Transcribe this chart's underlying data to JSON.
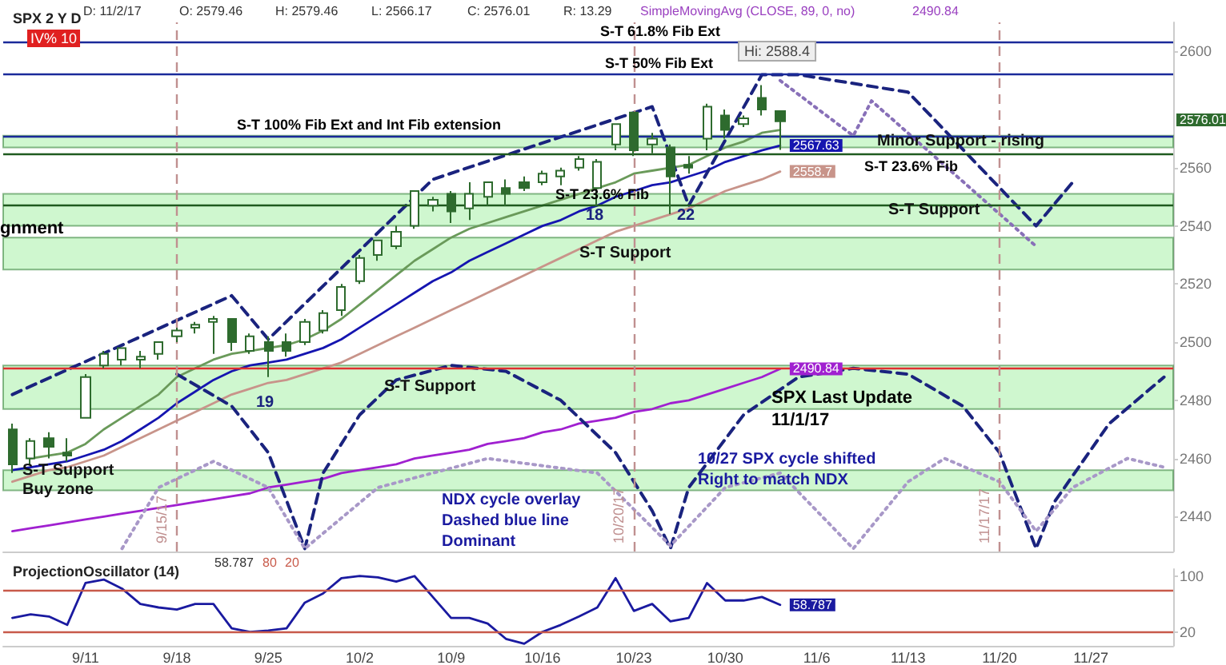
{
  "chart_data": [
    {
      "type": "candlestick",
      "title": "SPX 2 Y D",
      "color": "#2e6b2e",
      "marker": "none",
      "tick_labels": "y",
      "categories": [
        null,
        null,
        null,
        null,
        "9/11",
        null,
        null,
        null,
        null,
        "9/18",
        null,
        null,
        null,
        null,
        "9/25",
        null,
        null,
        null,
        null,
        "10/2",
        null,
        null,
        null,
        null,
        "10/9",
        null,
        null,
        null,
        null,
        "10/16",
        null,
        null,
        null,
        null,
        "10/23",
        null,
        null,
        null,
        null,
        "10/30",
        null,
        null,
        null,
        null,
        "11/6",
        null,
        null,
        null,
        null,
        "11/13",
        null,
        null,
        null,
        null,
        "11/20",
        null,
        null,
        null,
        null,
        "11/27",
        null,
        null,
        null,
        null
      ],
      "ohlc": [
        [
          2470,
          2472,
          2455,
          2458
        ],
        [
          2460,
          2467,
          2458,
          2466
        ],
        [
          2467,
          2469,
          2460,
          2464
        ],
        [
          2462,
          2467,
          2459,
          2461
        ],
        [
          2474,
          2489,
          2474,
          2488
        ],
        [
          2492,
          2497,
          2491,
          2496
        ],
        [
          2494,
          2498,
          2492,
          2498
        ],
        [
          2494,
          2497,
          2491,
          2495
        ],
        [
          2496,
          2500,
          2494,
          2500
        ],
        [
          2502,
          2505,
          2500,
          2504
        ],
        [
          2505,
          2507,
          2503,
          2506
        ],
        [
          2507,
          2509,
          2496,
          2508
        ],
        [
          2508,
          2508,
          2497,
          2500
        ],
        [
          2497,
          2503,
          2496,
          2502
        ],
        [
          2500,
          2502,
          2488,
          2497
        ],
        [
          2500,
          2503,
          2495,
          2497
        ],
        [
          2500,
          2508,
          2499,
          2507
        ],
        [
          2504,
          2511,
          2503,
          2510
        ],
        [
          2511,
          2520,
          2509,
          2519
        ],
        [
          2521,
          2530,
          2520,
          2529
        ],
        [
          2530,
          2535,
          2528,
          2535
        ],
        [
          2533,
          2540,
          2532,
          2538
        ],
        [
          2540,
          2552,
          2539,
          2552
        ],
        [
          2547,
          2550,
          2545,
          2549
        ],
        [
          2551,
          2552,
          2541,
          2545
        ],
        [
          2546,
          2555,
          2542,
          2551
        ],
        [
          2550,
          2555,
          2547,
          2555
        ],
        [
          2553,
          2556,
          2547,
          2551
        ],
        [
          2555,
          2557,
          2552,
          2553
        ],
        [
          2555,
          2559,
          2554,
          2558
        ],
        [
          2557,
          2560,
          2554,
          2559
        ],
        [
          2560,
          2564,
          2559,
          2563
        ],
        [
          2553,
          2563,
          2547,
          2562
        ],
        [
          2568,
          2575,
          2566,
          2575
        ],
        [
          2579,
          2579,
          2564,
          2566
        ],
        [
          2568,
          2572,
          2565,
          2570
        ],
        [
          2567,
          2568,
          2544,
          2557
        ],
        [
          2561,
          2564,
          2558,
          2560
        ],
        [
          2570,
          2582,
          2566,
          2581
        ],
        [
          2578,
          2580,
          2570,
          2573
        ],
        [
          2575,
          2578,
          2574,
          2577
        ],
        [
          2584,
          2588.4,
          2578,
          2580
        ],
        [
          2579.46,
          2579.46,
          2566.17,
          2576.01
        ],
        null,
        null,
        null,
        null,
        null,
        null,
        null,
        null,
        null,
        null,
        null,
        null,
        null,
        null,
        null,
        null,
        null,
        null,
        null,
        null,
        null
      ],
      "series": [
        {
          "type": "line",
          "color": "#6a9a5a",
          "values": [
            null,
            2460,
            2461,
            2462,
            2465,
            2470,
            2474,
            2478,
            2482,
            2488,
            2491,
            2494,
            2496,
            2497,
            2498,
            2499,
            2501,
            2504,
            2508,
            2513,
            2518,
            2523,
            2528,
            2532,
            2536,
            2539,
            2541,
            2543,
            2545,
            2547,
            2549,
            2551,
            2553,
            2555,
            2558,
            2559,
            2560,
            2561,
            2564,
            2567,
            2569,
            2572,
            2573,
            null,
            null,
            null,
            null,
            null,
            null,
            null,
            null,
            null,
            null,
            null,
            null,
            null,
            null,
            null,
            null,
            null,
            null,
            null,
            null,
            null
          ]
        },
        {
          "type": "line",
          "color": "#1515b0",
          "values": [
            2456,
            2457,
            2458,
            2459,
            2461,
            2463,
            2466,
            2470,
            2474,
            2479,
            2483,
            2487,
            2490,
            2492,
            2493,
            2494,
            2496,
            2498,
            2501,
            2505,
            2509,
            2513,
            2517,
            2521,
            2524,
            2528,
            2531,
            2534,
            2537,
            2540,
            2542,
            2545,
            2547,
            2550,
            2552,
            2554,
            2555,
            2557,
            2559,
            2562,
            2564,
            2566,
            2567.63,
            null,
            null,
            null,
            null,
            null,
            null,
            null,
            null,
            null,
            null,
            null,
            null,
            null,
            null,
            null,
            null,
            null,
            null,
            null,
            null,
            null
          ],
          "value_labels": [
            null,
            null,
            null,
            null,
            null,
            null,
            null,
            null,
            null,
            null,
            null,
            null,
            null,
            null,
            null,
            null,
            null,
            null,
            null,
            null,
            null,
            null,
            null,
            null,
            null,
            null,
            null,
            null,
            null,
            null,
            null,
            null,
            null,
            null,
            null,
            null,
            null,
            null,
            null,
            null,
            null,
            null,
            "2567.63",
            null,
            null,
            null,
            null,
            null,
            null,
            null,
            null,
            null,
            null,
            null,
            null,
            null,
            null,
            null,
            null,
            null,
            null,
            null,
            null,
            null
          ]
        },
        {
          "type": "line",
          "color": "#c8948a",
          "values": [
            2452,
            2454,
            2456,
            2457,
            2459,
            2461,
            2464,
            2467,
            2470,
            2473,
            2476,
            2479,
            2482,
            2484,
            2486,
            2487,
            2489,
            2491,
            2493,
            2496,
            2499,
            2502,
            2505,
            2508,
            2511,
            2514,
            2517,
            2520,
            2523,
            2526,
            2529,
            2532,
            2535,
            2538,
            2540,
            2542,
            2544,
            2546,
            2549,
            2552,
            2554,
            2556,
            2558.7,
            null,
            null,
            null,
            null,
            null,
            null,
            null,
            null,
            null,
            null,
            null,
            null,
            null,
            null,
            null,
            null,
            null,
            null,
            null,
            null,
            null
          ],
          "value_labels": [
            null,
            null,
            null,
            null,
            null,
            null,
            null,
            null,
            null,
            null,
            null,
            null,
            null,
            null,
            null,
            null,
            null,
            null,
            null,
            null,
            null,
            null,
            null,
            null,
            null,
            null,
            null,
            null,
            null,
            null,
            null,
            null,
            null,
            null,
            null,
            null,
            null,
            null,
            null,
            null,
            null,
            null,
            "2558.7",
            null,
            null,
            null,
            null,
            null,
            null,
            null,
            null,
            null,
            null,
            null,
            null,
            null,
            null,
            null,
            null,
            null,
            null,
            null,
            null,
            null
          ]
        },
        {
          "type": "line",
          "color": "#a020d0",
          "values": [
            2435,
            2436,
            2437,
            2438,
            2439,
            2440,
            2441,
            2442,
            2443,
            2444,
            2445,
            2446,
            2447,
            2448,
            2450,
            2451,
            2452,
            2453,
            2455,
            2456,
            2457,
            2458,
            2460,
            2461,
            2462,
            2463,
            2465,
            2466,
            2467,
            2469,
            2470,
            2472,
            2473,
            2474,
            2476,
            2477,
            2479,
            2480,
            2482,
            2484,
            2486,
            2488,
            2490.84,
            null,
            null,
            null,
            null,
            null,
            null,
            null,
            null,
            null,
            null,
            null,
            null,
            null,
            null,
            null,
            null,
            null,
            null,
            null,
            null,
            null
          ],
          "value_labels": [
            null,
            null,
            null,
            null,
            null,
            null,
            null,
            null,
            null,
            null,
            null,
            null,
            null,
            null,
            null,
            null,
            null,
            null,
            null,
            null,
            null,
            null,
            null,
            null,
            null,
            null,
            null,
            null,
            null,
            null,
            null,
            null,
            null,
            null,
            null,
            null,
            null,
            null,
            null,
            null,
            null,
            null,
            "2490.84",
            null,
            null,
            null,
            null,
            null,
            null,
            null,
            null,
            null,
            null,
            null,
            null,
            null,
            null,
            null,
            null,
            null,
            null,
            null,
            null,
            null
          ]
        },
        {
          "type": "line",
          "color": "#1a237e",
          "line_style": "dashed",
          "values": [
            2482,
            null,
            null,
            null,
            null,
            null,
            null,
            null,
            null,
            null,
            null,
            null,
            2516,
            null,
            2501,
            null,
            null,
            null,
            null,
            null,
            null,
            null,
            null,
            2556,
            null,
            null,
            null,
            null,
            null,
            null,
            null,
            null,
            null,
            null,
            null,
            2581,
            null,
            2547,
            null,
            null,
            null,
            2592,
            null,
            2592,
            null,
            null,
            null,
            null,
            null,
            2586,
            null,
            null,
            null,
            null,
            null,
            null,
            2540,
            null,
            2555,
            null,
            null,
            null,
            null,
            null
          ]
        },
        {
          "type": "line",
          "color": "#8870b8",
          "line_style": "dotted",
          "values": [
            null,
            null,
            null,
            null,
            null,
            null,
            null,
            null,
            null,
            null,
            null,
            null,
            null,
            null,
            null,
            null,
            null,
            null,
            null,
            null,
            null,
            null,
            null,
            null,
            null,
            null,
            null,
            null,
            null,
            null,
            null,
            null,
            null,
            null,
            null,
            null,
            null,
            null,
            null,
            null,
            null,
            null,
            2590,
            null,
            null,
            null,
            2571,
            2583,
            null,
            null,
            null,
            null,
            null,
            null,
            null,
            null,
            2533,
            null,
            null,
            null,
            null,
            null,
            null,
            null
          ]
        },
        {
          "type": "line",
          "color": "#1a237e",
          "line_style": "dashed",
          "values": [
            null,
            null,
            null,
            null,
            null,
            null,
            null,
            null,
            null,
            2489,
            null,
            null,
            2478,
            null,
            2462,
            null,
            2429,
            2455,
            null,
            2475,
            null,
            2487,
            null,
            null,
            2492,
            null,
            null,
            2490,
            null,
            null,
            2480,
            null,
            null,
            2462,
            null,
            2442,
            2429,
            2450,
            null,
            null,
            2475,
            null,
            null,
            2488,
            null,
            null,
            2491,
            null,
            null,
            2489,
            null,
            null,
            2478,
            null,
            2462,
            null,
            2429,
            2445,
            null,
            null,
            2472,
            null,
            null,
            2488
          ]
        },
        {
          "type": "line",
          "color": "#a898c8",
          "line_style": "dotted",
          "values": [
            null,
            null,
            null,
            null,
            null,
            null,
            2429,
            null,
            2450,
            null,
            null,
            2459,
            null,
            null,
            2450,
            null,
            2429,
            null,
            null,
            null,
            2450,
            null,
            null,
            null,
            null,
            null,
            2460,
            null,
            null,
            null,
            null,
            null,
            2455,
            null,
            null,
            null,
            2430,
            null,
            null,
            2450,
            null,
            null,
            2455,
            null,
            null,
            null,
            2429,
            null,
            null,
            2452,
            null,
            2460,
            null,
            null,
            2452,
            null,
            2435,
            null,
            2450,
            null,
            null,
            2460,
            null,
            2457
          ]
        }
      ],
      "ylim": [
        2428,
        2610
      ],
      "yticks": [
        2440,
        2460,
        2480,
        2500,
        2520,
        2540,
        2560,
        2600
      ],
      "ref_lines": [
        {
          "axis": "y",
          "value": 2603,
          "label": "S-T 61.8% Fib Ext",
          "color": "#1a2a9a"
        },
        {
          "axis": "y",
          "value": 2592,
          "label": "S-T 50% Fib Ext",
          "color": "#1a2a9a"
        },
        {
          "axis": "y",
          "value": 2571,
          "label": "S-T 100% Fib Ext and Int Fib extension",
          "color": "#1a2a9a"
        },
        {
          "axis": "y",
          "value": 2565,
          "label": "S-T 23.6% Fib",
          "color": "#1f5a1f"
        },
        {
          "axis": "y",
          "value": 2547,
          "label": "S-T 23.6% Fib",
          "color": "#1f5a1f"
        },
        {
          "axis": "y",
          "value": 2491,
          "color": "#e03030"
        },
        {
          "axis": "x",
          "value": "9/18",
          "label": "9/15/17",
          "color": "#c09090",
          "line_style": "dashed"
        },
        {
          "axis": "x",
          "value": "10/23",
          "label": "10/20/17",
          "color": "#c09090",
          "line_style": "dashed"
        },
        {
          "axis": "x",
          "value": "11/20",
          "label": "11/17/17",
          "color": "#c09090",
          "line_style": "dashed"
        }
      ],
      "bands": [
        {
          "axis": "y",
          "from": 2449,
          "to": 2456,
          "label": "S-T Support\nBuy zone",
          "color": "#a8f0a8"
        },
        {
          "axis": "y",
          "from": 2477,
          "to": 2492,
          "label": "S-T Support",
          "color": "#a8f0a8"
        },
        {
          "axis": "y",
          "from": 2525,
          "to": 2536,
          "label": "S-T Support",
          "color": "#a8f0a8"
        },
        {
          "axis": "y",
          "from": 2540,
          "to": 2551,
          "label": "S-T Support",
          "color": "#a8f0a8"
        },
        {
          "axis": "y",
          "from": 2567,
          "to": 2571,
          "label": "Minor Support - rising",
          "color": "#a8f0a8"
        }
      ],
      "annotations": [
        "D: 11/2/17",
        "O: 2579.46",
        "H: 2579.46",
        "L: 2566.17",
        "C: 2576.01",
        "R: 13.29",
        "SimpleMovingAvg (CLOSE, 89, 0, no)",
        "2490.84",
        "IV% 10",
        "gnment",
        "Hi: 2588.4",
        "19",
        "18",
        "22",
        "SPX Last Update\n11/1/17",
        "NDX cycle overlay\nDashed blue line\nDominant",
        "10/27 SPX cycle shifted\nRight to match NDX",
        "2576.01"
      ]
    },
    {
      "type": "line",
      "title": "ProjectionOscillator (14)",
      "marker": "none",
      "categories": [
        null,
        null,
        null,
        null,
        "9/11",
        null,
        null,
        null,
        null,
        "9/18",
        null,
        null,
        null,
        null,
        "9/25",
        null,
        null,
        null,
        null,
        "10/2",
        null,
        null,
        null,
        null,
        "10/9",
        null,
        null,
        null,
        null,
        "10/16",
        null,
        null,
        null,
        null,
        "10/23",
        null,
        null,
        null,
        null,
        "10/30",
        null,
        null,
        null,
        null,
        "11/6",
        null,
        null,
        null,
        null,
        "11/13",
        null,
        null,
        null,
        null,
        "11/20",
        null,
        null,
        null,
        null,
        "11/27",
        null,
        null,
        null,
        null
      ],
      "series": [
        {
          "type": "line",
          "color": "#1a1aa0",
          "values": [
            40,
            45,
            42,
            30,
            90,
            95,
            82,
            60,
            55,
            52,
            60,
            60,
            25,
            20,
            22,
            25,
            62,
            75,
            97,
            100,
            98,
            92,
            100,
            70,
            40,
            40,
            32,
            10,
            3,
            20,
            30,
            42,
            55,
            97,
            50,
            60,
            35,
            40,
            90,
            65,
            65,
            70,
            58.787,
            null,
            null,
            null,
            null,
            null,
            null,
            null,
            null,
            null,
            null,
            null,
            null,
            null,
            null,
            null,
            null,
            null,
            null,
            null,
            null,
            null
          ],
          "value_labels": [
            null,
            null,
            null,
            null,
            null,
            null,
            null,
            null,
            null,
            null,
            null,
            null,
            null,
            null,
            null,
            null,
            null,
            null,
            null,
            null,
            null,
            null,
            null,
            null,
            null,
            null,
            null,
            null,
            null,
            null,
            null,
            null,
            null,
            null,
            null,
            null,
            null,
            null,
            null,
            null,
            null,
            null,
            "58.787",
            null,
            null,
            null,
            null,
            null,
            null,
            null,
            null,
            null,
            null,
            null,
            null,
            null,
            null,
            null,
            null,
            null,
            null,
            null,
            null,
            null
          ]
        }
      ],
      "ylim": [
        0,
        110
      ],
      "yticks": [
        20,
        100
      ],
      "ref_lines": [
        {
          "axis": "y",
          "value": 80,
          "label": "80",
          "color": "#c85a4a"
        },
        {
          "axis": "y",
          "value": 20,
          "label": "20",
          "color": "#c85a4a"
        }
      ],
      "annotations": [
        "58.787"
      ]
    }
  ]
}
